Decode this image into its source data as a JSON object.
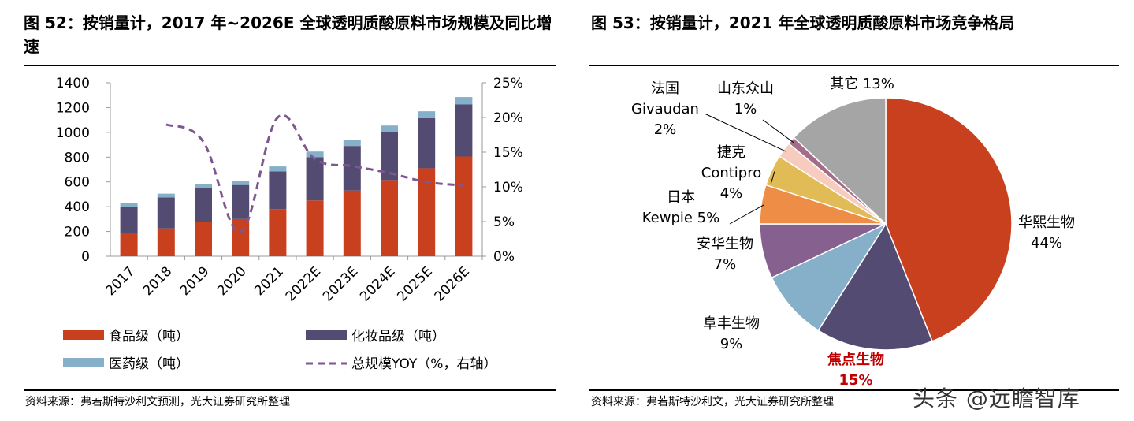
{
  "left": {
    "title": "图 52：按销量计，2017 年~2026E 全球透明质酸原料市场规模及同比增速",
    "source": "资料来源：弗若斯特沙利文预测，光大证券研究所整理"
  },
  "right": {
    "title": "图 53：按销量计，2021 年全球透明质酸原料市场竞争格局",
    "source": "资料来源：弗若斯特沙利文，光大证券研究所整理"
  },
  "watermark": "头条 @远瞻智库",
  "chart_data": [
    {
      "type": "bar",
      "stacked": true,
      "title": "",
      "categories": [
        "2017",
        "2018",
        "2019",
        "2020",
        "2021",
        "2022E",
        "2023E",
        "2024E",
        "2025E",
        "2026E"
      ],
      "series": [
        {
          "name": "食品级（吨）",
          "color": "#c9401f",
          "values": [
            190,
            225,
            275,
            300,
            380,
            450,
            530,
            615,
            710,
            805
          ]
        },
        {
          "name": "化妆品级（吨）",
          "color": "#534b72",
          "values": [
            210,
            250,
            275,
            275,
            305,
            350,
            360,
            385,
            405,
            420
          ]
        },
        {
          "name": "医药级（吨）",
          "color": "#86b0c9",
          "values": [
            30,
            30,
            35,
            35,
            40,
            45,
            50,
            55,
            55,
            60
          ]
        },
        {
          "name": "总规模YOY（%，右轴）",
          "color": "#7e5690",
          "line": true,
          "dashed": true,
          "axis": "right",
          "values": [
            null,
            19.0,
            16.5,
            3.5,
            20.0,
            14.0,
            13.0,
            12.0,
            10.7,
            10.2
          ]
        }
      ],
      "ylim": [
        0,
        1400
      ],
      "yticks": [
        "0",
        "200",
        "400",
        "600",
        "800",
        "1000",
        "1200",
        "1400"
      ],
      "y2lim": [
        0,
        25
      ],
      "y2ticks": [
        "0%",
        "5%",
        "10%",
        "15%",
        "20%",
        "25%"
      ],
      "legend_position": "bottom",
      "grid": false
    },
    {
      "type": "pie",
      "title": "",
      "slices": [
        {
          "label": "华熙生物",
          "value": 44,
          "pct": "44%",
          "color": "#c9401f"
        },
        {
          "label": "焦点生物",
          "value": 15,
          "pct": "15%",
          "color": "#534b72",
          "highlight": true
        },
        {
          "label": "阜丰生物",
          "value": 9,
          "pct": "9%",
          "color": "#86b0c9"
        },
        {
          "label": "安华生物",
          "value": 7,
          "pct": "7%",
          "color": "#86618f"
        },
        {
          "label": "日本",
          "label2": "Kewpie 5%",
          "value": 5,
          "pct": "5%",
          "color": "#ee8d45"
        },
        {
          "label": "捷克",
          "label2": "Contipro",
          "value": 4,
          "pct": "4%",
          "color": "#e0bb56"
        },
        {
          "label": "法国",
          "label2": "Givaudan",
          "value": 2,
          "pct": "2%",
          "color": "#f7cbbe"
        },
        {
          "label": "山东众山",
          "value": 1,
          "pct": "1%",
          "color": "#a46c88"
        },
        {
          "label": "其它 13%",
          "value": 13,
          "pct": "13%",
          "color": "#a5a5a5"
        }
      ],
      "start_angle_deg": 0,
      "direction": "clockwise"
    }
  ]
}
